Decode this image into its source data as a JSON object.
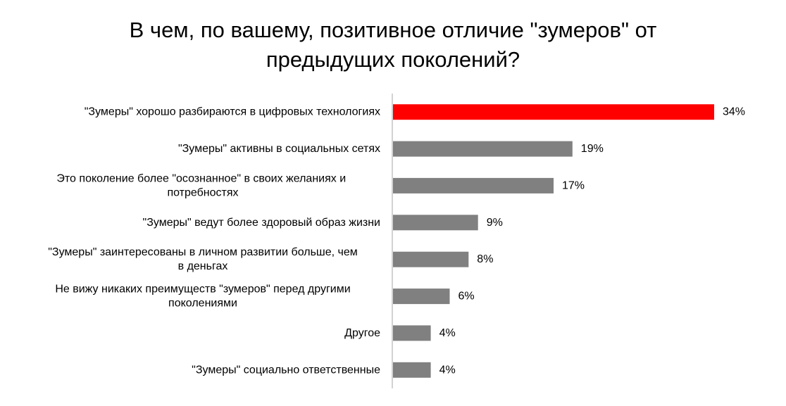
{
  "title": {
    "line1": "В чем, по вашему, позитивное отличие \"зумеров\" от",
    "line2": "предыдущих поколений?"
  },
  "colors": {
    "highlight": "#ff0000",
    "bar": "#808080",
    "axis": "#a6a6a6"
  },
  "chart_data": {
    "type": "bar",
    "orientation": "horizontal",
    "categories": [
      [
        "\"Зумеры\"  хорошо разбираются в цифровых технологиях"
      ],
      [
        "\"Зумеры\"  активны в социальных сетях"
      ],
      [
        "Это поколение более \"осознанное\" в своих желаниях и ",
        "потребностях"
      ],
      [
        "\"Зумеры\"  ведут более здоровый образ жизни"
      ],
      [
        "\"Зумеры\" заинтересованы в личном развитии больше, чем",
        "в деньгах"
      ],
      [
        "Не вижу никаких преимуществ \"зумеров\" перед другими",
        "поколениями"
      ],
      [
        "Другое"
      ],
      [
        "\"Зумеры\" социально ответственные"
      ]
    ],
    "values": [
      34,
      19,
      17,
      9,
      8,
      6,
      4,
      4
    ],
    "value_labels": [
      "34%",
      "19%",
      "17%",
      "9%",
      "8%",
      "6%",
      "4%",
      "4%"
    ],
    "highlight_index": 0,
    "title": "В чем, по вашему, позитивное отличие \"зумеров\" от предыдущих поколений?",
    "xlabel": "",
    "ylabel": "",
    "xlim": [
      0,
      34
    ],
    "grid": false,
    "legend": "none"
  }
}
